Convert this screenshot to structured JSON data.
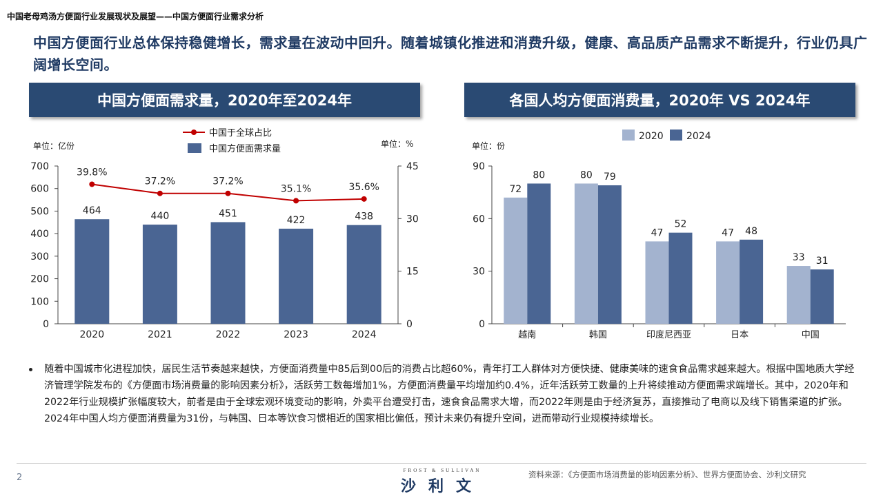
{
  "header": {
    "breadcrumb": "中国老母鸡汤方便面行业发展现状及展望——中国方便面行业需求分析"
  },
  "headline": "中国方便面行业总体保持稳健增长，需求量在波动中回升。随着城镇化推进和消费升级，健康、高品质产品需求不断提升，行业仍具广阔增长空间。",
  "colors": {
    "navy": "#2a4a73",
    "bar": "#4a6593",
    "bar_light": "#a3b3cf",
    "line": "#c00000",
    "headline": "#1f3a63"
  },
  "chart_data": [
    {
      "type": "bar+line",
      "title": "中国方便面需求量，2020年至2024年",
      "categories": [
        "2020",
        "2021",
        "2022",
        "2023",
        "2024"
      ],
      "series": [
        {
          "name": "中国方便面需求量",
          "type": "bar",
          "axis": "left",
          "values": [
            464,
            440,
            451,
            422,
            438
          ],
          "labels": [
            "464",
            "440",
            "451",
            "422",
            "438"
          ]
        },
        {
          "name": "中国于全球占比",
          "type": "line",
          "axis": "right",
          "values": [
            39.8,
            37.2,
            37.2,
            35.1,
            35.6
          ],
          "labels": [
            "39.8%",
            "37.2%",
            "37.2%",
            "35.1%",
            "35.6%"
          ]
        }
      ],
      "ylabel": "单位：亿份",
      "y2label": "单位：%",
      "ylim": [
        0,
        700
      ],
      "yticks": [
        "0",
        "100",
        "200",
        "300",
        "400",
        "500",
        "600",
        "700"
      ],
      "y2lim": [
        0,
        45
      ],
      "y2ticks": [
        "0",
        "15",
        "30",
        "45"
      ],
      "legend": "top-center",
      "grid": false
    },
    {
      "type": "bar",
      "title": "各国人均方便面消费量，2020年 VS 2024年",
      "categories": [
        "越南",
        "韩国",
        "印度尼西亚",
        "日本",
        "中国"
      ],
      "series": [
        {
          "name": "2020",
          "values": [
            72,
            80,
            47,
            47,
            33
          ],
          "labels": [
            "72",
            "80",
            "47",
            "47",
            "33"
          ]
        },
        {
          "name": "2024",
          "values": [
            80,
            79,
            52,
            48,
            31
          ],
          "labels": [
            "80",
            "79",
            "52",
            "48",
            "31"
          ]
        }
      ],
      "ylabel": "单位：份",
      "ylim": [
        0,
        90
      ],
      "yticks": [
        "0",
        "30",
        "60",
        "90"
      ],
      "legend": "top-center",
      "grid": false
    }
  ],
  "body_text": "随着中国城市化进程加快，居民生活节奏越来越快，方便面消费量中85后到00后的消费占比超60%，青年打工人群体对方便快捷、健康美味的速食食品需求越来越大。根据中国地质大学经济管理学院发布的《方便面市场消费量的影响因素分析》，活跃劳工数每增加1%，方便面消费量平均增加约0.4%，近年活跃劳工数量的上升将续推动方便面需求端增长。其中，2020年和2022年行业规模扩张幅度较大，前者是由于全球宏观环境变动的影响，外卖平台遭受打击，速食食品需求大增，而2022年则是由于经济复苏，直接推动了电商以及线下销售渠道的扩张。2024年中国人均方便面消费量为31份，与韩国、日本等饮食习惯相近的国家相比偏低，预计未来仍有提升空间，进而带动行业规模持续增长。",
  "footer": {
    "page_number": "2",
    "logo_en": "FROST & SULLIVAN",
    "logo_cn": "沙利文",
    "source": "资料来源：《方便面市场消费量的影响因素分析》、世界方便面协会、沙利文研究"
  }
}
